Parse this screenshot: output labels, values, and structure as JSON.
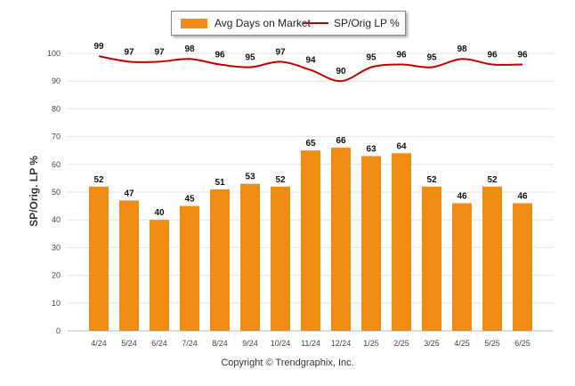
{
  "chart_data": {
    "type": "bar+line",
    "categories": [
      "4/24",
      "5/24",
      "6/24",
      "7/24",
      "8/24",
      "9/24",
      "10/24",
      "11/24",
      "12/24",
      "1/25",
      "2/25",
      "3/25",
      "4/25",
      "5/25",
      "6/25"
    ],
    "series": [
      {
        "name": "Avg Days on Market",
        "type": "bar",
        "color": "#f08c14",
        "values": [
          52,
          47,
          40,
          45,
          51,
          53,
          52,
          65,
          66,
          63,
          64,
          52,
          46,
          52,
          46
        ]
      },
      {
        "name": "SP/Orig LP %",
        "type": "line",
        "color": "#c00000",
        "values": [
          99,
          97,
          97,
          98,
          96,
          95,
          97,
          94,
          90,
          95,
          96,
          95,
          98,
          96,
          96
        ]
      }
    ],
    "ylabel": "SP/Orig. LP %",
    "ylim": [
      0,
      100
    ],
    "yticks": [
      0,
      10,
      20,
      30,
      40,
      50,
      60,
      70,
      80,
      90,
      100
    ],
    "grid": true,
    "legend": "top-center"
  },
  "footer": {
    "copyright": "Copyright © Trendgraphix, Inc."
  }
}
